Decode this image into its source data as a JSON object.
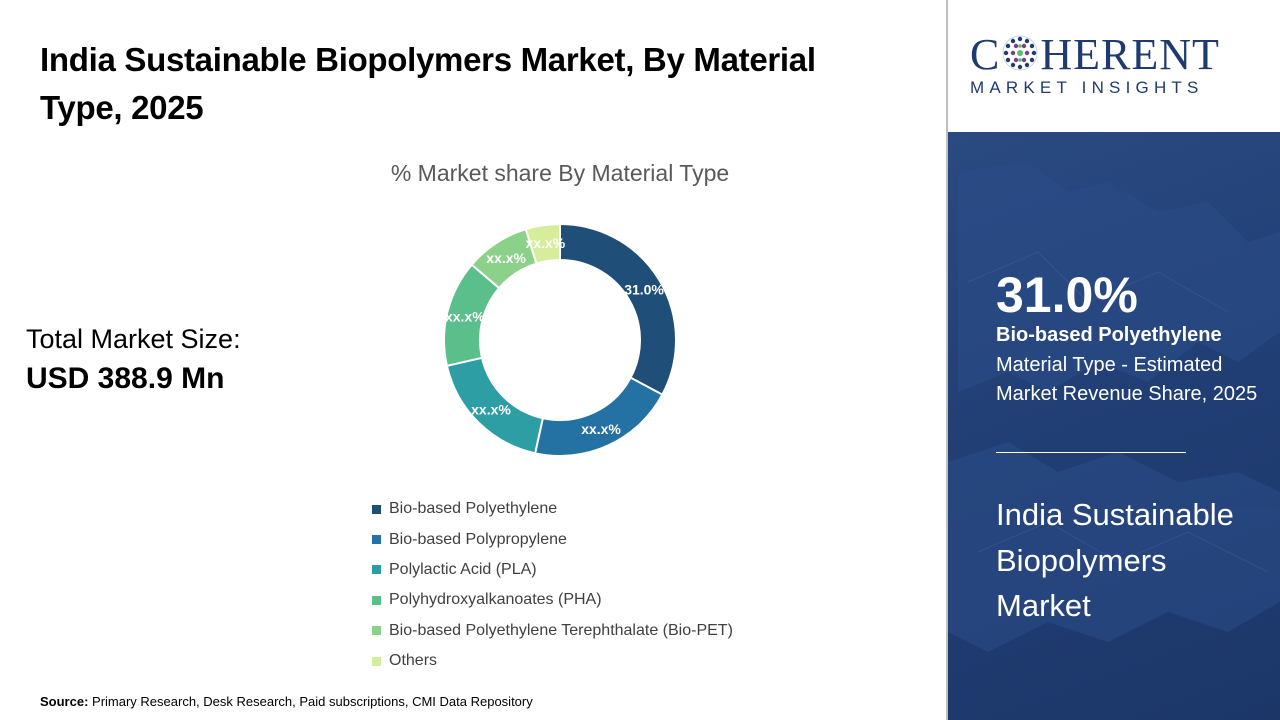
{
  "header": {
    "title": "India Sustainable Biopolymers Market, By Material Type, 2025"
  },
  "total": {
    "label": "Total Market Size:",
    "value": "USD 388.9 Mn"
  },
  "source": {
    "label": "Source:",
    "text": "Primary Research, Desk Research, Paid subscriptions, CMI Data Repository"
  },
  "logo": {
    "word_left": "C",
    "word_right": "HERENT",
    "sub": "MARKET INSIGHTS"
  },
  "sidebar": {
    "stat_value": "31.0%",
    "stat_name": "Bio-based Polyethylene",
    "stat_desc": "Material Type - Estimated Market Revenue Share, 2025",
    "market_name": "India Sustainable Biopolymers Market"
  },
  "colors": {
    "brand": "#1f3a6e",
    "panel": "#213f75"
  },
  "chart_data": {
    "type": "pie",
    "title": "% Market share By Material Type",
    "categories": [
      "Bio-based Polyethylene",
      "Bio-based Polypropylene",
      "Polylactic Acid (PLA)",
      "Polyhydroxyalkanoates (PHA)",
      "Bio-based Polyethylene Terephthalate (Bio-PET)",
      "Others"
    ],
    "values": [
      31.0,
      19.5,
      17.0,
      14.0,
      8.5,
      4.5
    ],
    "data_labels": [
      "31.0%",
      "xx.x%",
      "xx.x%",
      "xx.x%",
      "xx.x%",
      "xx.x%"
    ],
    "colors": [
      "#1f4e79",
      "#2471a3",
      "#2e9ea5",
      "#5bbf8c",
      "#8bd18a",
      "#d6ed9c"
    ],
    "legend_position": "bottom",
    "donut": true
  }
}
